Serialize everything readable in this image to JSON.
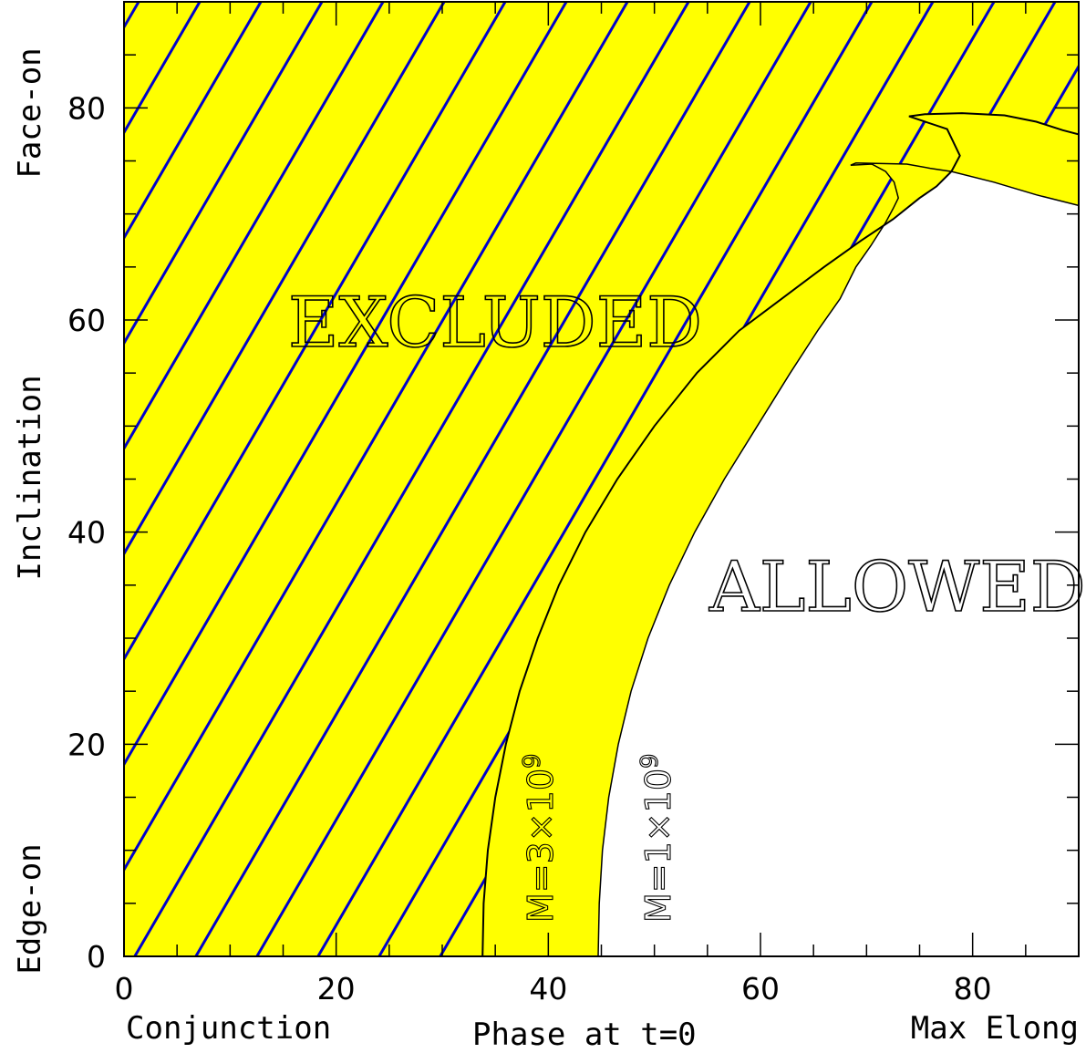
{
  "chart_data": {
    "type": "area",
    "xlim": [
      0,
      90
    ],
    "ylim": [
      0,
      90
    ],
    "x_ticks": [
      0,
      20,
      40,
      60,
      80
    ],
    "y_ticks": [
      0,
      20,
      40,
      60,
      80
    ],
    "x_labels": {
      "left": "Conjunction",
      "center": "Phase at t=0",
      "right": "Max Elong"
    },
    "y_labels": {
      "bottom": "Edge-on",
      "center": "Inclination",
      "top": "Face-on"
    },
    "regions": {
      "excluded": "EXCLUDED",
      "allowed": "ALLOWED"
    },
    "curves": [
      {
        "name": "M=3×10⁹",
        "label": "M=3×10",
        "exponent": "9",
        "x": [
          33.8,
          33.9,
          34.3,
          35.0,
          36.0,
          37.3,
          39.0,
          41.0,
          43.5,
          46.5,
          50.0,
          54.0,
          58.0,
          62.0,
          66.0,
          69.5,
          72.5,
          75.0,
          76.6,
          78.0,
          78.8,
          77.6,
          74.0,
          75.5,
          79.0,
          83.0,
          86.0,
          88.5,
          90.0
        ],
        "y": [
          0,
          5,
          10,
          15,
          20,
          25,
          30,
          35,
          40,
          45,
          50,
          55,
          59,
          62,
          65,
          67.5,
          69.5,
          71.5,
          72.6,
          74.0,
          75.5,
          78.0,
          79.2,
          79.4,
          79.5,
          79.3,
          78.7,
          77.9,
          77.5
        ]
      },
      {
        "name": "M=1×10⁹",
        "label": "M=1×10",
        "exponent": "9",
        "x": [
          44.7,
          44.8,
          45.1,
          45.7,
          46.6,
          47.8,
          49.4,
          51.4,
          53.8,
          56.6,
          59.7,
          62.8,
          65.4,
          67.5,
          69.0,
          70.4,
          71.8,
          72.5,
          73.0,
          72.6,
          71.8,
          70.5,
          68.5,
          69.0,
          73.8,
          76.0,
          78.0,
          82.0,
          86.0,
          90.0
        ],
        "y": [
          0,
          5,
          10,
          15,
          20,
          25,
          30,
          35,
          40,
          45,
          50,
          55,
          59,
          62,
          65,
          67,
          69.2,
          70.5,
          71.5,
          73.0,
          74.0,
          74.7,
          74.6,
          74.8,
          74.7,
          74.3,
          74.0,
          73.0,
          71.8,
          70.8
        ]
      }
    ],
    "colors": {
      "excluded_fill": "#ffff00",
      "hatch": "#0000cc",
      "band_fill": "#ffff00",
      "allowed_fill": "#ffffff",
      "axes": "#000000"
    }
  }
}
